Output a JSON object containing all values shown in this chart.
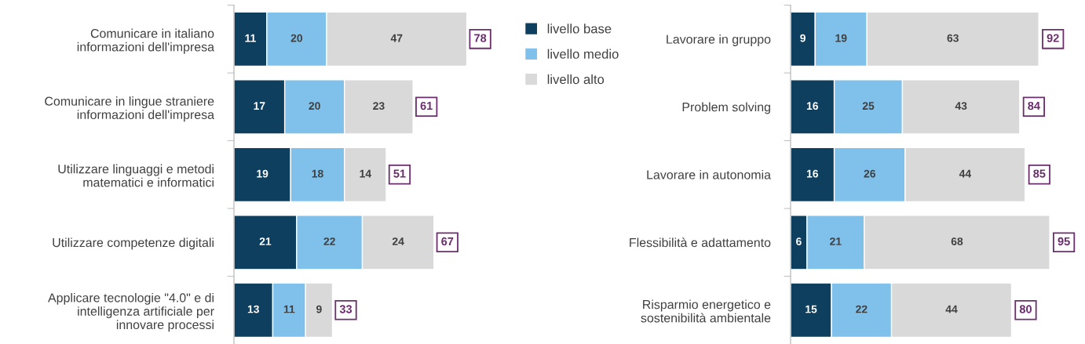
{
  "chart_data": [
    {
      "type": "bar",
      "orientation": "horizontal",
      "stacked": true,
      "data_labels": true,
      "grid": false,
      "legend": "right",
      "categories": [
        "Comunicare in italiano\ninformazioni dell'impresa",
        "Comunicare in lingue straniere\ninformazioni dell'impresa",
        "Utilizzare linguaggi e metodi\nmatematici e informatici",
        "Utilizzare competenze digitali",
        "Applicare tecnologie \"4.0\" e di\nintelligenza artificiale per\ninnovare processi"
      ],
      "series": [
        {
          "name": "livello base",
          "color": "#0f3f5e",
          "values": [
            11,
            17,
            19,
            21,
            13
          ]
        },
        {
          "name": "livello medio",
          "color": "#80c1ec",
          "values": [
            20,
            20,
            18,
            22,
            11
          ]
        },
        {
          "name": "livello alto",
          "color": "#d9d9d9",
          "values": [
            47,
            23,
            14,
            24,
            9
          ]
        }
      ],
      "totals": [
        "78",
        "61",
        "51",
        "67",
        "33"
      ]
    },
    {
      "type": "bar",
      "orientation": "horizontal",
      "stacked": true,
      "data_labels": true,
      "grid": false,
      "categories": [
        "Lavorare in gruppo",
        "Problem solving",
        "Lavorare in autonomia",
        "Flessibilità e adattamento",
        "Risparmio energetico e\nsostenibilità ambientale"
      ],
      "series": [
        {
          "color": "#0f3f5e",
          "values": [
            9,
            16,
            16,
            6,
            15
          ]
        },
        {
          "color": "#80c1ec",
          "values": [
            19,
            25,
            26,
            21,
            22
          ]
        },
        {
          "color": "#d9d9d9",
          "values": [
            63,
            43,
            44,
            68,
            44
          ]
        }
      ],
      "totals": [
        "92",
        "84",
        "85",
        "95",
        "80"
      ]
    }
  ]
}
